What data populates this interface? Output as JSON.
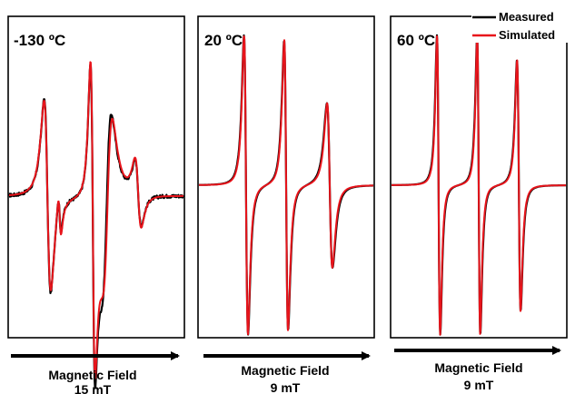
{
  "colors": {
    "measured": "#000000",
    "simulated": "#e8141b",
    "frame": "#000000"
  },
  "legend": {
    "measured": "Measured",
    "simulated": "Simulated"
  },
  "chart_data": [
    {
      "type": "line",
      "title": "-130 ºC",
      "xlabel": "Magnetic Field",
      "xlabel_line2": "15 mT",
      "series": [
        {
          "name": "Measured",
          "lines": [
            {
              "x0": 0.22,
              "a": 0.57,
              "w": 0.032
            },
            {
              "x0": 0.29,
              "a": 0.12,
              "w": 0.015
            },
            {
              "x0": 0.48,
              "a": 0.9,
              "w": 0.022
            },
            {
              "x0": 0.56,
              "a": -0.5,
              "w": 0.045
            },
            {
              "x0": 0.74,
              "a": 0.19,
              "w": 0.03
            }
          ],
          "baseline": 0.0,
          "noise": 0.01
        },
        {
          "name": "Simulated",
          "lines": [
            {
              "x0": 0.22,
              "a": 0.56,
              "w": 0.033
            },
            {
              "x0": 0.29,
              "a": 0.13,
              "w": 0.015
            },
            {
              "x0": 0.48,
              "a": 0.89,
              "w": 0.022
            },
            {
              "x0": 0.565,
              "a": -0.47,
              "w": 0.045
            },
            {
              "x0": 0.74,
              "a": 0.2,
              "w": 0.03
            }
          ],
          "baseline": 0.0,
          "noise": 0
        }
      ]
    },
    {
      "type": "line",
      "title": "20 ºC",
      "xlabel": "Magnetic Field",
      "xlabel_line2": "9 mT",
      "series": [
        {
          "name": "Measured",
          "lines": [
            {
              "x0": 0.27,
              "a": 1.0,
              "w": 0.02
            },
            {
              "x0": 0.5,
              "a": 0.97,
              "w": 0.02
            },
            {
              "x0": 0.75,
              "a": 0.55,
              "w": 0.028
            }
          ],
          "baseline": 0.0,
          "noise": 0
        },
        {
          "name": "Simulated",
          "lines": [
            {
              "x0": 0.27,
              "a": 1.0,
              "w": 0.019
            },
            {
              "x0": 0.5,
              "a": 0.97,
              "w": 0.019
            },
            {
              "x0": 0.75,
              "a": 0.55,
              "w": 0.026
            }
          ],
          "baseline": 0.0,
          "noise": 0
        }
      ]
    },
    {
      "type": "line",
      "title": "60 ºC",
      "xlabel": "Magnetic Field",
      "xlabel_line2": "9 mT",
      "series": [
        {
          "name": "Measured",
          "lines": [
            {
              "x0": 0.27,
              "a": 1.0,
              "w": 0.016
            },
            {
              "x0": 0.5,
              "a": 1.0,
              "w": 0.016
            },
            {
              "x0": 0.73,
              "a": 0.84,
              "w": 0.018
            }
          ],
          "baseline": 0.0,
          "noise": 0
        },
        {
          "name": "Simulated",
          "lines": [
            {
              "x0": 0.27,
              "a": 1.0,
              "w": 0.015
            },
            {
              "x0": 0.5,
              "a": 1.0,
              "w": 0.015
            },
            {
              "x0": 0.73,
              "a": 0.84,
              "w": 0.017
            }
          ],
          "baseline": 0.0,
          "noise": 0
        }
      ]
    }
  ]
}
